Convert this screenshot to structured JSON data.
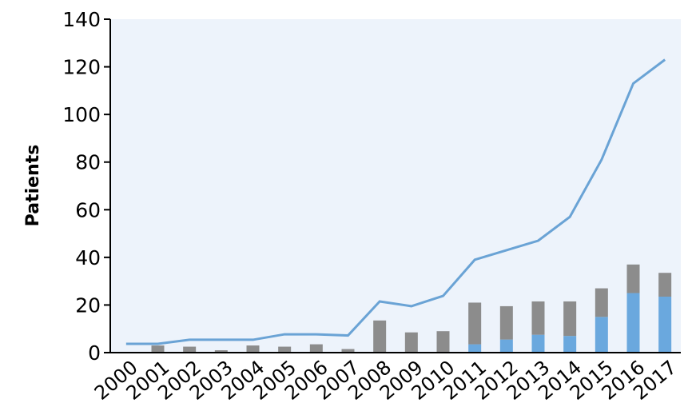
{
  "chart_data": {
    "type": "bar",
    "stacked": true,
    "y_label": "Patients",
    "categories": [
      "2000",
      "2001",
      "2002",
      "2003",
      "2004",
      "2005",
      "2006",
      "2007",
      "2008",
      "2009",
      "2010",
      "2011",
      "2012",
      "2013",
      "2014",
      "2015",
      "2016",
      "2017"
    ],
    "series": [
      {
        "type": "bar",
        "color": "#6aa8de",
        "values": [
          0,
          0,
          0,
          0,
          0,
          0,
          0,
          0,
          0,
          0,
          0,
          3.5,
          5.5,
          7.5,
          7,
          15,
          25,
          23.5
        ]
      },
      {
        "type": "bar",
        "color": "#8c8c8c",
        "values": [
          0,
          3,
          2.5,
          1,
          3,
          2.5,
          3.5,
          1.5,
          13.5,
          8.5,
          9,
          17.5,
          14,
          14,
          14.5,
          12,
          12,
          10
        ]
      },
      {
        "type": "line",
        "color": "#6aa3d5",
        "values": [
          3.7,
          3.7,
          5.4,
          5.4,
          5.4,
          7.7,
          7.7,
          7.2,
          21.5,
          19.5,
          23.8,
          39,
          43,
          47,
          57,
          81,
          113,
          123
        ]
      }
    ],
    "ylim": [
      0,
      140
    ],
    "yticks": [
      0,
      20,
      40,
      60,
      80,
      100,
      120,
      140
    ],
    "background": "#edf3fb"
  }
}
